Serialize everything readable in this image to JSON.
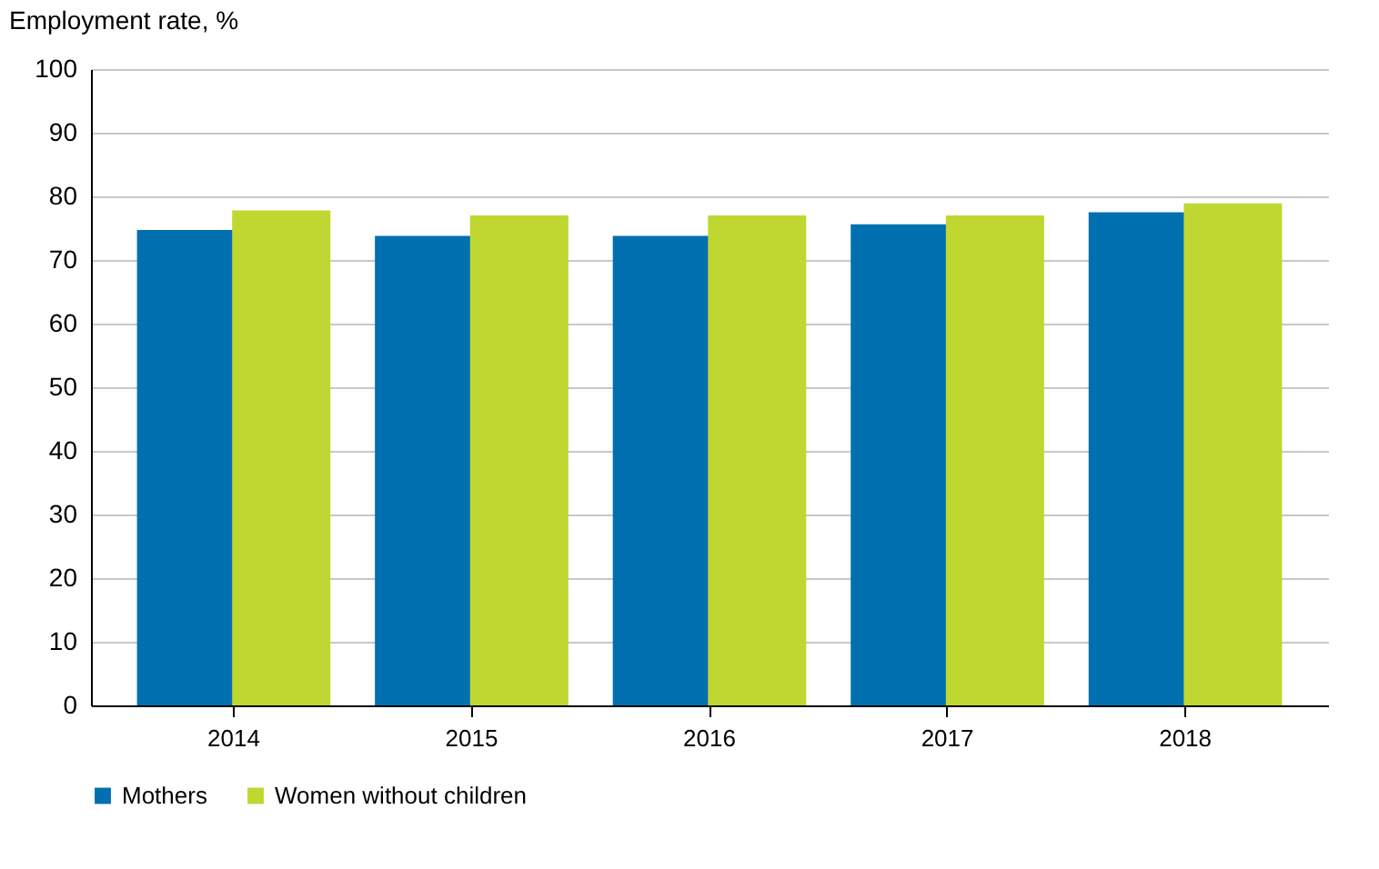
{
  "chart_data": {
    "type": "bar",
    "ylabel": "Employment rate, %",
    "categories": [
      "2014",
      "2015",
      "2016",
      "2017",
      "2018"
    ],
    "series": [
      {
        "name": "Mothers",
        "color": "#0070b0",
        "values": [
          74.7,
          73.8,
          73.8,
          75.6,
          77.5
        ]
      },
      {
        "name": "Women without children",
        "color": "#bfd730",
        "values": [
          77.8,
          77.0,
          77.0,
          77.0,
          78.9
        ]
      }
    ],
    "ylim": [
      0,
      100
    ],
    "yticks": [
      0,
      10,
      20,
      30,
      40,
      50,
      60,
      70,
      80,
      90,
      100
    ],
    "grid": "y",
    "legend": "bottom"
  }
}
